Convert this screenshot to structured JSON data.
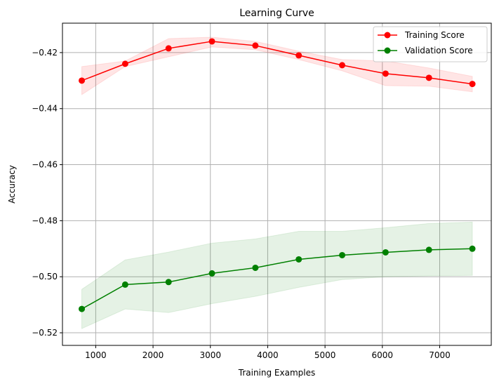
{
  "chart_data": {
    "type": "line",
    "title": "Learning Curve",
    "xlabel": "Training Examples",
    "ylabel": "Accuracy",
    "xlim": [
      420,
      7900
    ],
    "ylim": [
      -0.5245,
      -0.4095
    ],
    "x_ticks": [
      1000,
      2000,
      3000,
      4000,
      5000,
      6000,
      7000
    ],
    "y_ticks": [
      -0.52,
      -0.5,
      -0.48,
      -0.46,
      -0.44,
      -0.42
    ],
    "y_tick_labels": [
      "−0.52",
      "−0.50",
      "−0.48",
      "−0.46",
      "−0.44",
      "−0.42"
    ],
    "grid": true,
    "legend_position": "top-right",
    "x": [
      757,
      1514,
      2271,
      3028,
      3785,
      4542,
      5299,
      6056,
      6813,
      7570
    ],
    "series": [
      {
        "name": "Training Score",
        "color": "#ff0000",
        "band_color": "#ff0000",
        "values": [
          -0.43,
          -0.424,
          -0.4185,
          -0.416,
          -0.4175,
          -0.421,
          -0.4245,
          -0.4275,
          -0.429,
          -0.4312
        ],
        "band_upper": [
          -0.425,
          -0.423,
          -0.415,
          -0.4145,
          -0.416,
          -0.4195,
          -0.4225,
          -0.423,
          -0.4255,
          -0.4285
        ],
        "band_lower": [
          -0.435,
          -0.425,
          -0.4215,
          -0.418,
          -0.419,
          -0.4225,
          -0.4265,
          -0.4318,
          -0.432,
          -0.434
        ]
      },
      {
        "name": "Validation Score",
        "color": "#008000",
        "band_color": "#008000",
        "values": [
          -0.5115,
          -0.5028,
          -0.5019,
          -0.4988,
          -0.4968,
          -0.4938,
          -0.4923,
          -0.4913,
          -0.4904,
          -0.49
        ],
        "band_upper": [
          -0.5045,
          -0.494,
          -0.4912,
          -0.488,
          -0.4865,
          -0.4838,
          -0.4838,
          -0.4825,
          -0.481,
          -0.4805
        ],
        "band_lower": [
          -0.5185,
          -0.5115,
          -0.5128,
          -0.5096,
          -0.507,
          -0.5038,
          -0.501,
          -0.5,
          -0.4997,
          -0.4995
        ]
      }
    ]
  }
}
